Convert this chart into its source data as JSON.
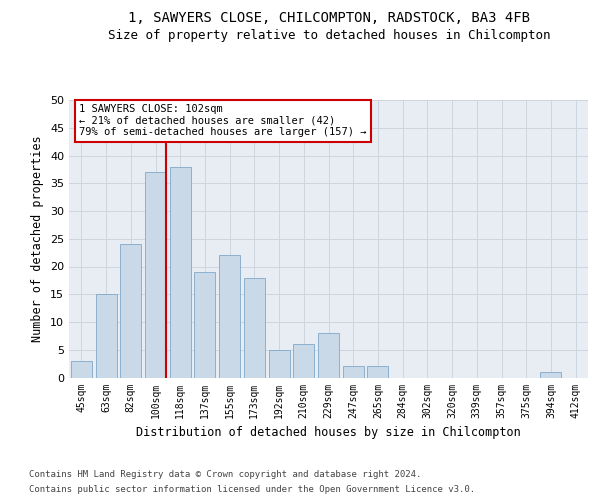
{
  "title1": "1, SAWYERS CLOSE, CHILCOMPTON, RADSTOCK, BA3 4FB",
  "title2": "Size of property relative to detached houses in Chilcompton",
  "xlabel": "Distribution of detached houses by size in Chilcompton",
  "ylabel": "Number of detached properties",
  "categories": [
    "45sqm",
    "63sqm",
    "82sqm",
    "100sqm",
    "118sqm",
    "137sqm",
    "155sqm",
    "173sqm",
    "192sqm",
    "210sqm",
    "229sqm",
    "247sqm",
    "265sqm",
    "284sqm",
    "302sqm",
    "320sqm",
    "339sqm",
    "357sqm",
    "375sqm",
    "394sqm",
    "412sqm"
  ],
  "values": [
    3,
    15,
    24,
    37,
    38,
    19,
    22,
    18,
    5,
    6,
    8,
    2,
    2,
    0,
    0,
    0,
    0,
    0,
    0,
    1,
    0
  ],
  "bar_color": "#c9d9e8",
  "bar_edge_color": "#7fa8c9",
  "vline_color": "#cc0000",
  "annotation_line1": "1 SAWYERS CLOSE: 102sqm",
  "annotation_line2": "← 21% of detached houses are smaller (42)",
  "annotation_line3": "79% of semi-detached houses are larger (157) →",
  "annotation_box_facecolor": "#ffffff",
  "annotation_box_edgecolor": "#cc0000",
  "ylim": [
    0,
    50
  ],
  "yticks": [
    0,
    5,
    10,
    15,
    20,
    25,
    30,
    35,
    40,
    45,
    50
  ],
  "grid_color": "#cdd5df",
  "background_color": "#e8edf4",
  "footer1": "Contains HM Land Registry data © Crown copyright and database right 2024.",
  "footer2": "Contains public sector information licensed under the Open Government Licence v3.0."
}
